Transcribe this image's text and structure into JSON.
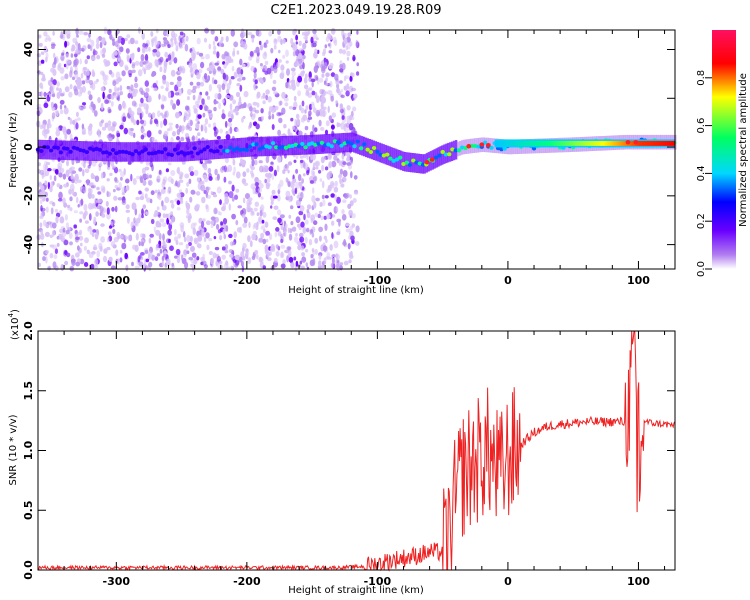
{
  "title": "C2E1.2023.049.19.28.R09",
  "chart_data": [
    {
      "type": "heatmap",
      "name": "spectrogram",
      "xlabel": "Height of straight line (km)",
      "ylabel": "Frequency (Hz)",
      "xlim": [
        -360,
        128
      ],
      "ylim": [
        -50,
        48
      ],
      "x_ticks": [
        -300,
        -200,
        -100,
        0,
        100
      ],
      "y_ticks": [
        -40,
        -20,
        0,
        20,
        40
      ],
      "noise_region_x": [
        -360,
        -115
      ],
      "signal_track": [
        {
          "x": -360,
          "y": -1
        },
        {
          "x": -300,
          "y": -2
        },
        {
          "x": -250,
          "y": -2
        },
        {
          "x": -200,
          "y": 0
        },
        {
          "x": -150,
          "y": 1
        },
        {
          "x": -120,
          "y": 2
        },
        {
          "x": -100,
          "y": -2
        },
        {
          "x": -80,
          "y": -6
        },
        {
          "x": -65,
          "y": -7
        },
        {
          "x": -50,
          "y": -3
        },
        {
          "x": -35,
          "y": 0
        },
        {
          "x": -20,
          "y": 1
        },
        {
          "x": 0,
          "y": 0
        },
        {
          "x": 50,
          "y": 1
        },
        {
          "x": 90,
          "y": 2
        },
        {
          "x": 128,
          "y": 2
        }
      ],
      "colorbar": {
        "label": "Normalized spectral amplitude",
        "range": [
          0,
          1
        ],
        "ticks": [
          0.0,
          0.2,
          0.4,
          0.6,
          0.8
        ],
        "colors": [
          "#ffffff",
          "#b07cf0",
          "#6a00ff",
          "#0000ff",
          "#00d8ff",
          "#00ff60",
          "#ffff00",
          "#ff0000",
          "#ff1060"
        ]
      }
    },
    {
      "type": "line",
      "name": "snr",
      "xlabel": "Height of straight line (km)",
      "ylabel": "SNR (10 * v/v)",
      "scale_label": "(x10",
      "scale_exp": "4",
      "scale_close": ")",
      "xlim": [
        -360,
        128
      ],
      "ylim": [
        0,
        2.0
      ],
      "x_ticks": [
        -300,
        -200,
        -100,
        0,
        100
      ],
      "y_ticks": [
        0.0,
        0.5,
        1.0,
        1.5,
        2.0
      ],
      "color": "#ee2222",
      "series": [
        {
          "x": [
            -360,
            -300,
            -200,
            -130,
            -110,
            -100,
            -90,
            -80,
            -70,
            -60,
            -50,
            -45,
            -40,
            -35,
            -30,
            -25,
            -20,
            -15,
            -10,
            -5,
            0,
            10,
            20,
            30,
            40,
            50,
            60,
            70,
            80,
            90,
            93,
            95,
            97,
            98,
            99,
            100,
            101,
            103,
            110,
            120,
            128
          ],
          "y": [
            0.02,
            0.02,
            0.02,
            0.02,
            0.03,
            0.05,
            0.08,
            0.1,
            0.12,
            0.15,
            0.15,
            0.25,
            0.6,
            0.8,
            0.85,
            0.9,
            0.95,
            1.0,
            0.85,
            0.8,
            0.95,
            1.05,
            1.15,
            1.2,
            1.22,
            1.23,
            1.24,
            1.24,
            1.24,
            1.24,
            1.4,
            1.65,
            1.9,
            1.7,
            0.4,
            2.0,
            0.45,
            1.25,
            1.23,
            1.22,
            1.21
          ]
        }
      ]
    }
  ]
}
